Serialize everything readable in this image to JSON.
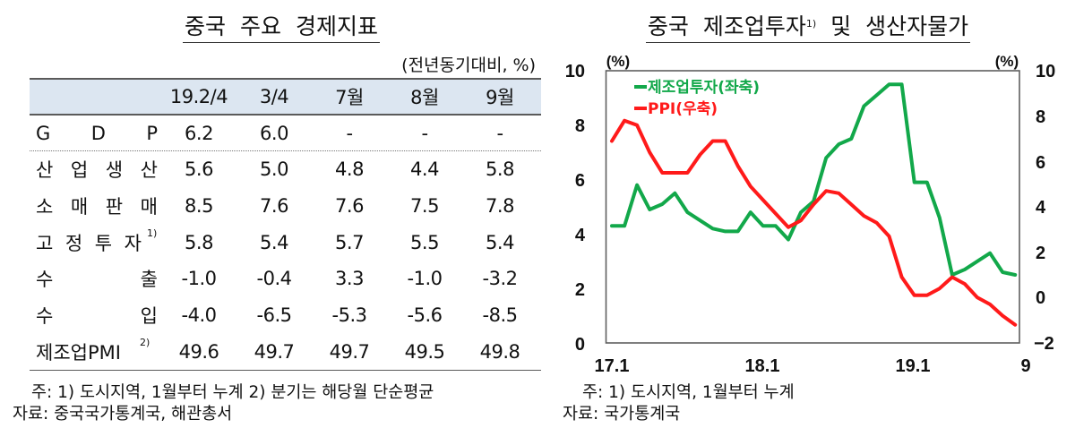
{
  "left_panel": {
    "title": "중국 주요 경제지표",
    "unit_note": "(전년동기대비, %)",
    "table": {
      "columns": [
        "19.2/4",
        "3/4",
        "7월",
        "8월",
        "9월"
      ],
      "rows": [
        {
          "label": "G D P",
          "sup": "",
          "values": [
            "6.2",
            "6.0",
            "-",
            "-",
            "-"
          ]
        },
        {
          "label": "산 업 생 산",
          "sup": "",
          "values": [
            "5.6",
            "5.0",
            "4.8",
            "4.4",
            "5.8"
          ]
        },
        {
          "label": "소 매 판 매",
          "sup": "",
          "values": [
            "8.5",
            "7.6",
            "7.6",
            "7.5",
            "7.8"
          ]
        },
        {
          "label": "고 정 투 자",
          "sup": "1)",
          "values": [
            "5.8",
            "5.4",
            "5.7",
            "5.5",
            "5.4"
          ]
        },
        {
          "label": "수 출",
          "sup": "",
          "values": [
            "-1.0",
            "-0.4",
            "3.3",
            "-1.0",
            "-3.2"
          ]
        },
        {
          "label": "수 입",
          "sup": "",
          "values": [
            "-4.0",
            "-6.5",
            "-5.3",
            "-5.6",
            "-8.5"
          ]
        },
        {
          "label": "제조업PMI",
          "sup": "2)",
          "values": [
            "49.6",
            "49.7",
            "49.7",
            "49.5",
            "49.8"
          ]
        }
      ]
    },
    "footnote": "주: 1) 도시지역, 1월부터 누계 2) 분기는 해당월 단순평균",
    "source": "자료: 중국국가통계국, 해관총서"
  },
  "right_panel": {
    "title_main": "중국 제조업투자",
    "title_sup": "1)",
    "title_rest": " 및 생산자물가",
    "footnote": "주: 1) 도시지역, 1월부터 누계",
    "source": "자료: 국가통계국"
  },
  "chart_data": {
    "type": "line",
    "title": "중국 제조업투자1) 및 생산자물가",
    "xlabel": "",
    "ylabel_left": "(%)",
    "ylabel_right": "(%)",
    "ylim_left": [
      0,
      10
    ],
    "ylim_right": [
      -2,
      10
    ],
    "yticks_left": [
      "10",
      "8",
      "6",
      "4",
      "2",
      "0"
    ],
    "yticks_right": [
      "10",
      "8",
      "6",
      "4",
      "2",
      "0",
      "−2"
    ],
    "x_tick_labels": [
      "17.1",
      "18.1",
      "19.1",
      "9"
    ],
    "grid": false,
    "legend_position": "upper left",
    "x": [
      "17.1",
      "17.2",
      "17.3",
      "17.4",
      "17.5",
      "17.6",
      "17.7",
      "17.8",
      "17.9",
      "17.10",
      "17.11",
      "17.12",
      "18.1",
      "18.2",
      "18.3",
      "18.4",
      "18.5",
      "18.6",
      "18.7",
      "18.8",
      "18.9",
      "18.10",
      "18.11",
      "18.12",
      "19.1",
      "19.2",
      "19.3",
      "19.4",
      "19.5",
      "19.6",
      "19.7",
      "19.8",
      "19.9"
    ],
    "series": [
      {
        "name": "제조업투자(좌축)",
        "axis": "left",
        "color": "#12a84a",
        "values": [
          4.3,
          4.3,
          5.8,
          4.9,
          5.1,
          5.5,
          4.8,
          4.5,
          4.2,
          4.1,
          4.1,
          4.8,
          4.3,
          4.3,
          3.8,
          4.8,
          5.2,
          6.8,
          7.3,
          7.5,
          8.7,
          9.1,
          9.5,
          9.5,
          5.9,
          5.9,
          4.6,
          2.5,
          2.7,
          3.0,
          3.3,
          2.6,
          2.5
        ]
      },
      {
        "name": "PPI(우축)",
        "axis": "right",
        "color": "#ff1a1a",
        "values": [
          6.9,
          7.8,
          7.6,
          6.4,
          5.5,
          5.5,
          5.5,
          6.3,
          6.9,
          6.9,
          5.8,
          4.9,
          4.3,
          3.7,
          3.1,
          3.4,
          4.1,
          4.7,
          4.6,
          4.1,
          3.6,
          3.3,
          2.7,
          0.9,
          0.1,
          0.1,
          0.4,
          0.9,
          0.6,
          0.0,
          -0.3,
          -0.8,
          -1.2
        ]
      }
    ]
  }
}
